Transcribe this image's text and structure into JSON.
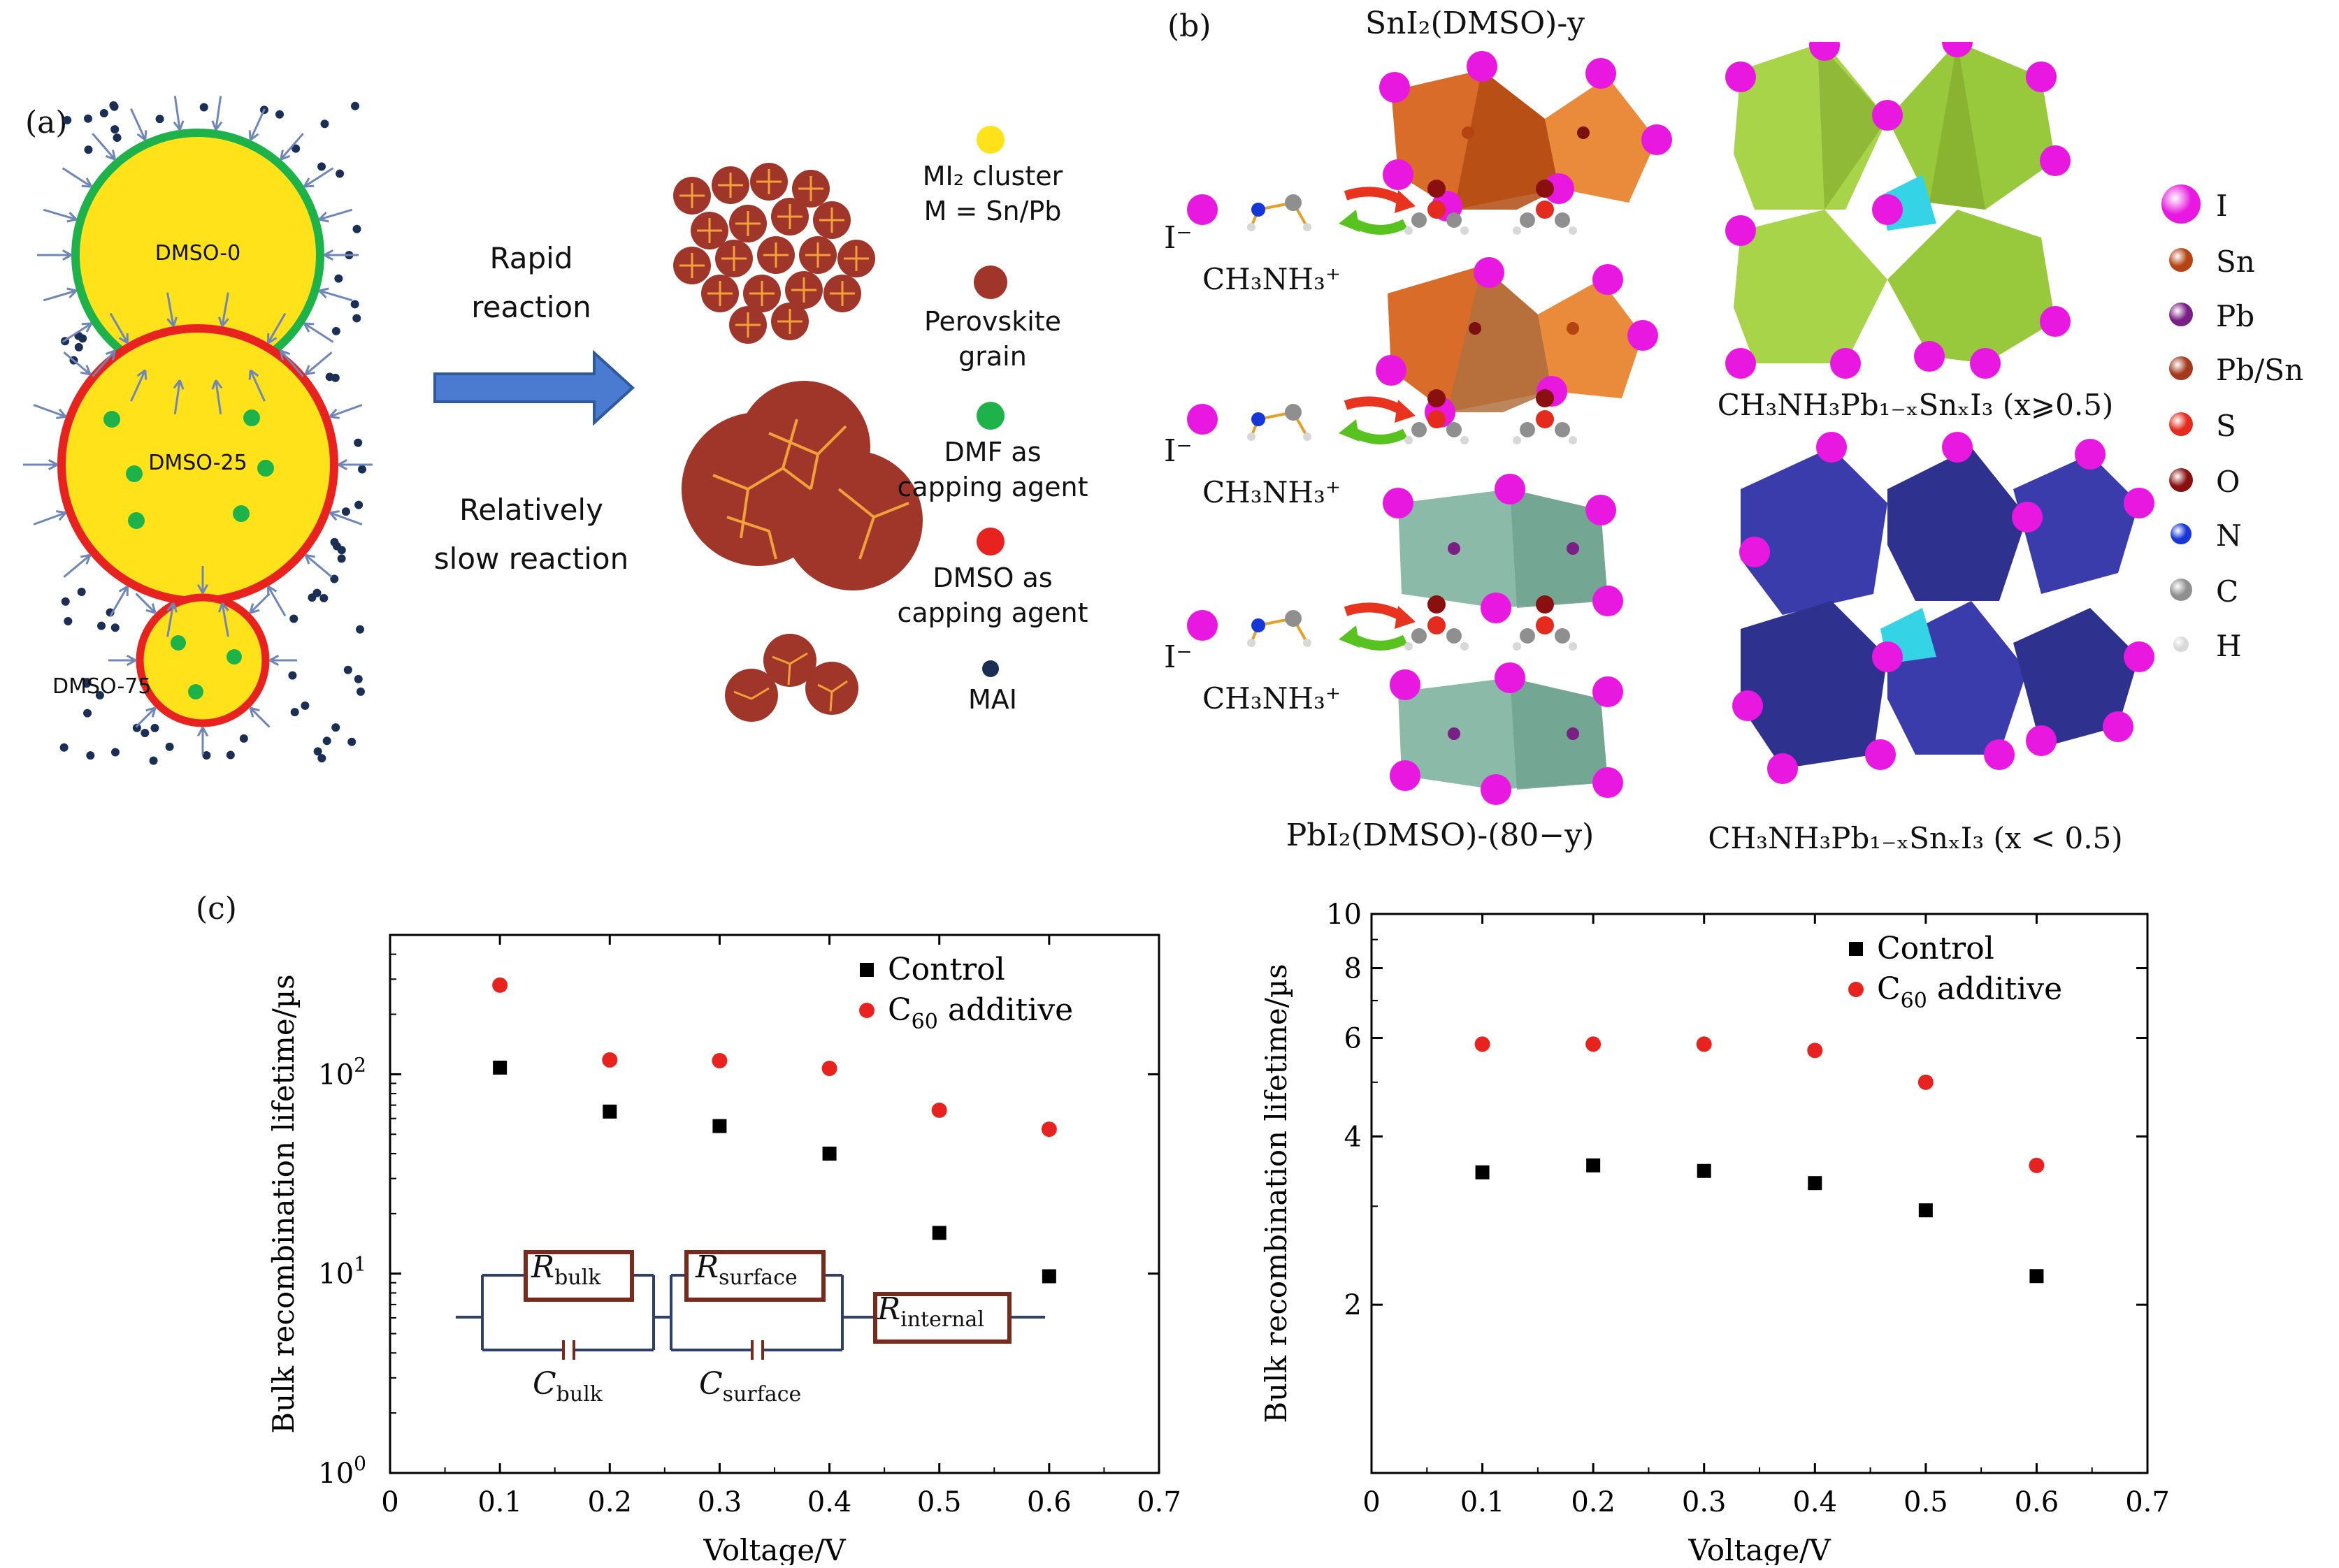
{
  "panel_a": {
    "label": "(a)",
    "clusters": [
      "DMSO-0",
      "DMSO-25",
      "DMSO-75"
    ],
    "arrow_top": [
      "Rapid",
      "reaction"
    ],
    "arrow_bottom": [
      "Relatively",
      "slow reaction"
    ],
    "legend": [
      {
        "lines": [
          "MI₂ cluster",
          "M = Sn/Pb"
        ],
        "color": "#ffe21a"
      },
      {
        "lines": [
          "Perovskite",
          "grain"
        ],
        "color": "#a0362a"
      },
      {
        "lines": [
          "DMF as",
          "capping agent"
        ],
        "color": "#1db34a"
      },
      {
        "lines": [
          "DMSO as",
          "capping agent"
        ],
        "color": "#e8231f"
      },
      {
        "lines": [
          "MAI"
        ],
        "color": "#1b2f55"
      }
    ]
  },
  "panel_b": {
    "label": "(b)",
    "top_title": "SnI₂(DMSO)-y",
    "bottom_title": "PbI₂(DMSO)-(80−y)",
    "right_top_caption": "CH₃NH₃Pb₁₋ₓSnₓI₃ (x⩾0.5)",
    "right_bottom_caption": "CH₃NH₃Pb₁₋ₓSnₓI₃ (x < 0.5)",
    "ion_label": "I⁻",
    "cation_label": "CH₃NH₃⁺",
    "atoms": [
      {
        "name": "I",
        "color": "#e818e0",
        "size": 56
      },
      {
        "name": "Sn",
        "color": "#b54412",
        "size": 34
      },
      {
        "name": "Pb",
        "color": "#7a1f86",
        "size": 34
      },
      {
        "name": "Pb/Sn",
        "color": "#a33a1e",
        "size": 34
      },
      {
        "name": "S",
        "color": "#e52a1e",
        "size": 34
      },
      {
        "name": "O",
        "color": "#8a1010",
        "size": 34
      },
      {
        "name": "N",
        "color": "#1536d8",
        "size": 30
      },
      {
        "name": "C",
        "color": "#8f8f8f",
        "size": 32
      },
      {
        "name": "H",
        "color": "#d8d8d8",
        "size": 22
      }
    ]
  },
  "panel_c": {
    "label": "(c)",
    "circuit": {
      "R_bulk": "R",
      "R_bulk_sub": "bulk",
      "R_surface": "R",
      "R_surface_sub": "surface",
      "R_internal": "R",
      "R_internal_sub": "internal",
      "C_bulk": "C",
      "C_bulk_sub": "bulk",
      "C_surface": "C",
      "C_surface_sub": "surface"
    }
  },
  "chart_data": [
    {
      "type": "scatter",
      "xlabel": "Voltage/V",
      "ylabel": "Bulk recombination lifetime/µs",
      "xlim": [
        0,
        0.7
      ],
      "ylim": [
        1,
        500
      ],
      "yscale": "log",
      "xticks": [
        "0",
        "0.1",
        "0.2",
        "0.3",
        "0.4",
        "0.5",
        "0.6",
        "0.7"
      ],
      "yticks": [
        {
          "v": 1,
          "base": "10",
          "exp": "0"
        },
        {
          "v": 10,
          "base": "10",
          "exp": "1"
        },
        {
          "v": 100,
          "base": "10",
          "exp": "2"
        }
      ],
      "legend_position": "top-right",
      "series": [
        {
          "name": "Control",
          "marker": "square",
          "color": "#000000",
          "x": [
            0.1,
            0.2,
            0.3,
            0.4,
            0.5,
            0.6
          ],
          "y": [
            108,
            65,
            55,
            40,
            16,
            9.7
          ]
        },
        {
          "name": "C60 additive",
          "name_base": "C",
          "name_sub": "60",
          "name_rest": " additive",
          "marker": "circle",
          "color": "#e8231f",
          "x": [
            0.1,
            0.2,
            0.3,
            0.4,
            0.5,
            0.6
          ],
          "y": [
            280,
            118,
            117,
            107,
            66,
            53
          ]
        }
      ]
    },
    {
      "type": "scatter",
      "xlabel": "Voltage/V",
      "ylabel": "Bulk recombination lifetime/µs",
      "xlim": [
        0,
        0.7
      ],
      "ylim": [
        1,
        10
      ],
      "yscale": "log",
      "xticks": [
        "0",
        "0.1",
        "0.2",
        "0.3",
        "0.4",
        "0.5",
        "0.6",
        "0.7"
      ],
      "yticks": [
        {
          "v": 2,
          "base": "2"
        },
        {
          "v": 4,
          "base": "4"
        },
        {
          "v": 6,
          "base": "6"
        },
        {
          "v": 8,
          "base": "8"
        },
        {
          "v": 10,
          "base": "10"
        }
      ],
      "legend_position": "top-right",
      "series": [
        {
          "name": "Control",
          "marker": "square",
          "color": "#000000",
          "x": [
            0.1,
            0.2,
            0.3,
            0.4,
            0.5,
            0.6
          ],
          "y": [
            3.45,
            3.55,
            3.47,
            3.3,
            2.95,
            2.25
          ]
        },
        {
          "name": "C60 additive",
          "name_base": "C",
          "name_sub": "60",
          "name_rest": " additive",
          "marker": "circle",
          "color": "#e8231f",
          "x": [
            0.1,
            0.2,
            0.3,
            0.4,
            0.5,
            0.6
          ],
          "y": [
            5.85,
            5.85,
            5.85,
            5.7,
            5.0,
            3.55
          ]
        }
      ]
    }
  ]
}
